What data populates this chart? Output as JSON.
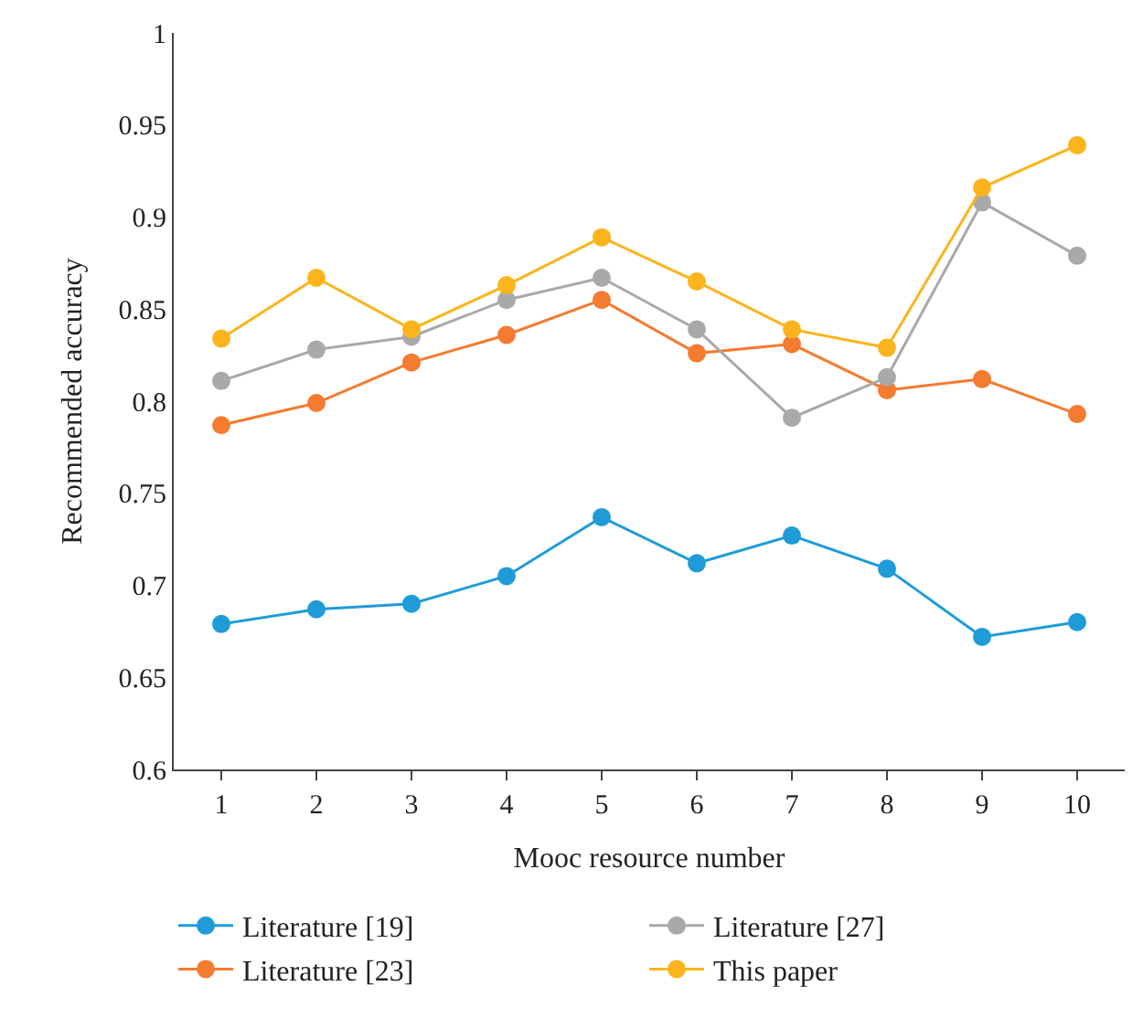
{
  "chart_data": {
    "type": "line",
    "xlabel": "Mooc resource number",
    "ylabel": "Recommended accuracy",
    "categories": [
      "1",
      "2",
      "3",
      "4",
      "5",
      "6",
      "7",
      "8",
      "9",
      "10"
    ],
    "series": [
      {
        "name": "Literature [19]",
        "color": "#1f9cd8",
        "values": [
          0.679,
          0.687,
          0.69,
          0.705,
          0.737,
          0.712,
          0.727,
          0.709,
          0.672,
          0.68
        ]
      },
      {
        "name": "Literature [23]",
        "color": "#f47b30",
        "values": [
          0.787,
          0.799,
          0.821,
          0.836,
          0.855,
          0.826,
          0.831,
          0.806,
          0.812,
          0.793
        ]
      },
      {
        "name": "Literature [27]",
        "color": "#a9a9ab",
        "values": [
          0.811,
          0.828,
          0.835,
          0.855,
          0.867,
          0.839,
          0.791,
          0.813,
          0.908,
          0.879
        ]
      },
      {
        "name": "This paper",
        "color": "#fbb41b",
        "values": [
          0.834,
          0.867,
          0.839,
          0.863,
          0.889,
          0.865,
          0.839,
          0.829,
          0.916,
          0.939
        ]
      }
    ],
    "ylim": [
      0.6,
      1
    ],
    "yticks": [
      0.6,
      0.65,
      0.7,
      0.75,
      0.8,
      0.85,
      0.9,
      0.95,
      1
    ],
    "legend": "bottom",
    "marker": "circle",
    "line_style": "solid"
  }
}
